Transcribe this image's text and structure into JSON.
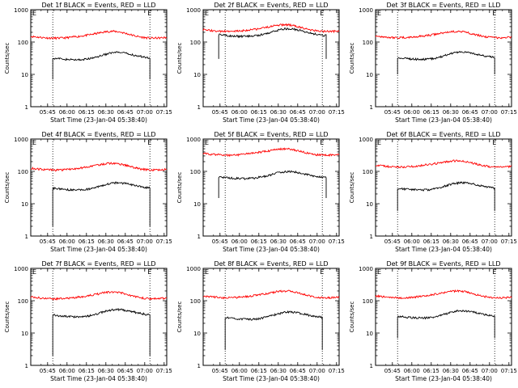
{
  "chart_data": [
    {
      "type": "line",
      "title": "Det 1f BLACK = Events, RED = LLD",
      "xlabel": "Start Time (23-Jan-04 05:38:40)",
      "ylabel": "Counts/sec",
      "yscale": "log",
      "ylim": [
        1,
        1000
      ],
      "xlim": [
        -7,
        98
      ],
      "x_tick_labels": [
        "05:45",
        "06:00",
        "06:15",
        "06:30",
        "06:45",
        "07:00",
        "07:15"
      ],
      "y_tick_labels": [
        "1",
        "10",
        "100",
        "1000"
      ],
      "markers": {
        "start": 10,
        "end": 85,
        "label": "E"
      },
      "series": [
        {
          "name": "RED = LLD",
          "color": "#ff0000",
          "start": -7,
          "end": 98,
          "base": 150,
          "amp": 0.3
        },
        {
          "name": "BLACK = Events",
          "color": "#000000",
          "start": 10,
          "end": 85,
          "base": 32,
          "amp": 0.35,
          "edge_low": 7
        }
      ]
    },
    {
      "type": "line",
      "title": "Det 2f BLACK = Events, RED = LLD",
      "xlabel": "Start Time (23-Jan-04 05:38:40)",
      "ylabel": "Counts/sec",
      "yscale": "log",
      "ylim": [
        1,
        1000
      ],
      "xlim": [
        -7,
        98
      ],
      "x_tick_labels": [
        "05:45",
        "06:00",
        "06:15",
        "06:30",
        "06:45",
        "07:00",
        "07:15"
      ],
      "y_tick_labels": [
        "1",
        "10",
        "100",
        "1000"
      ],
      "markers": {
        "start": 10,
        "end": 85,
        "label": "E"
      },
      "series": [
        {
          "name": "RED = LLD",
          "color": "#ff0000",
          "start": -7,
          "end": 98,
          "base": 240,
          "amp": 0.3
        },
        {
          "name": "BLACK = Events",
          "color": "#000000",
          "start": 5,
          "end": 88,
          "base": 170,
          "amp": 0.35,
          "edge_low": 30
        }
      ]
    },
    {
      "type": "line",
      "title": "Det 3f BLACK = Events, RED = LLD",
      "xlabel": "Start Time (23-Jan-04 05:38:40)",
      "ylabel": "Counts/sec",
      "yscale": "log",
      "ylim": [
        1,
        1000
      ],
      "xlim": [
        -7,
        98
      ],
      "x_tick_labels": [
        "05:45",
        "06:00",
        "06:15",
        "06:30",
        "06:45",
        "07:00",
        "07:15"
      ],
      "y_tick_labels": [
        "1",
        "10",
        "100",
        "1000"
      ],
      "markers": {
        "start": 10,
        "end": 85,
        "label": "E"
      },
      "series": [
        {
          "name": "RED = LLD",
          "color": "#ff0000",
          "start": -7,
          "end": 98,
          "base": 155,
          "amp": 0.25
        },
        {
          "name": "BLACK = Events",
          "color": "#000000",
          "start": 10,
          "end": 85,
          "base": 33,
          "amp": 0.35,
          "edge_low": 10
        }
      ]
    },
    {
      "type": "line",
      "title": "Det 4f BLACK = Events, RED = LLD",
      "xlabel": "Start Time (23-Jan-04 05:38:40)",
      "ylabel": "Counts/sec",
      "yscale": "log",
      "ylim": [
        1,
        1000
      ],
      "xlim": [
        -7,
        98
      ],
      "x_tick_labels": [
        "05:45",
        "06:00",
        "06:15",
        "06:30",
        "06:45",
        "07:00",
        "07:15"
      ],
      "y_tick_labels": [
        "1",
        "10",
        "100",
        "1000"
      ],
      "markers": {
        "start": 10,
        "end": 85,
        "label": "E"
      },
      "series": [
        {
          "name": "RED = LLD",
          "color": "#ff0000",
          "start": -7,
          "end": 98,
          "base": 125,
          "amp": 0.3
        },
        {
          "name": "BLACK = Events",
          "color": "#000000",
          "start": 10,
          "end": 85,
          "base": 30,
          "amp": 0.35,
          "edge_low": 2
        }
      ]
    },
    {
      "type": "line",
      "title": "Det 5f BLACK = Events, RED = LLD",
      "xlabel": "Start Time (23-Jan-04 05:38:40)",
      "ylabel": "Counts/sec",
      "yscale": "log",
      "ylim": [
        1,
        1000
      ],
      "xlim": [
        -7,
        98
      ],
      "x_tick_labels": [
        "05:45",
        "06:00",
        "06:15",
        "06:30",
        "06:45",
        "07:00",
        "07:15"
      ],
      "y_tick_labels": [
        "1",
        "10",
        "100",
        "1000"
      ],
      "markers": {
        "start": 10,
        "end": 85,
        "label": "E"
      },
      "series": [
        {
          "name": "RED = LLD",
          "color": "#ff0000",
          "start": -7,
          "end": 98,
          "base": 360,
          "amp": 0.25
        },
        {
          "name": "BLACK = Events",
          "color": "#000000",
          "start": 5,
          "end": 88,
          "base": 68,
          "amp": 0.3,
          "edge_low": 15
        }
      ]
    },
    {
      "type": "line",
      "title": "Det 6f BLACK = Events, RED = LLD",
      "xlabel": "Start Time (23-Jan-04 05:38:40)",
      "ylabel": "Counts/sec",
      "yscale": "log",
      "ylim": [
        1,
        1000
      ],
      "xlim": [
        -7,
        98
      ],
      "x_tick_labels": [
        "05:45",
        "06:00",
        "06:15",
        "06:30",
        "06:45",
        "07:00",
        "07:15"
      ],
      "y_tick_labels": [
        "1",
        "10",
        "100",
        "1000"
      ],
      "markers": {
        "start": 10,
        "end": 85,
        "label": "E"
      },
      "series": [
        {
          "name": "RED = LLD",
          "color": "#ff0000",
          "start": -7,
          "end": 98,
          "base": 155,
          "amp": 0.25
        },
        {
          "name": "BLACK = Events",
          "color": "#000000",
          "start": 10,
          "end": 85,
          "base": 30,
          "amp": 0.35,
          "edge_low": 6
        }
      ]
    },
    {
      "type": "line",
      "title": "Det 7f BLACK = Events, RED = LLD",
      "xlabel": "Start Time (23-Jan-04 05:38:40)",
      "ylabel": "Counts/sec",
      "yscale": "log",
      "ylim": [
        1,
        1000
      ],
      "xlim": [
        -7,
        98
      ],
      "x_tick_labels": [
        "05:45",
        "06:00",
        "06:15",
        "06:30",
        "06:45",
        "07:00",
        "07:15"
      ],
      "y_tick_labels": [
        "1",
        "10",
        "100",
        "1000"
      ],
      "markers": {
        "start": 10,
        "end": 85,
        "label": "E"
      },
      "series": [
        {
          "name": "RED = LLD",
          "color": "#ff0000",
          "start": -7,
          "end": 98,
          "base": 130,
          "amp": 0.3
        },
        {
          "name": "BLACK = Events",
          "color": "#000000",
          "start": 10,
          "end": 85,
          "base": 36,
          "amp": 0.35,
          "edge_low": 2
        }
      ]
    },
    {
      "type": "line",
      "title": "Det 8f BLACK = Events, RED = LLD",
      "xlabel": "Start Time (23-Jan-04 05:38:40)",
      "ylabel": "Counts/sec",
      "yscale": "log",
      "ylim": [
        1,
        1000
      ],
      "xlim": [
        -7,
        98
      ],
      "x_tick_labels": [
        "05:45",
        "06:00",
        "06:15",
        "06:30",
        "06:45",
        "07:00",
        "07:15"
      ],
      "y_tick_labels": [
        "1",
        "10",
        "100",
        "1000"
      ],
      "markers": {
        "start": 10,
        "end": 85,
        "label": "E"
      },
      "series": [
        {
          "name": "RED = LLD",
          "color": "#ff0000",
          "start": -7,
          "end": 98,
          "base": 140,
          "amp": 0.3
        },
        {
          "name": "BLACK = Events",
          "color": "#000000",
          "start": 10,
          "end": 85,
          "base": 30,
          "amp": 0.35,
          "edge_low": 3
        }
      ]
    },
    {
      "type": "line",
      "title": "Det 9f BLACK = Events, RED = LLD",
      "xlabel": "Start Time (23-Jan-04 05:38:40)",
      "ylabel": "Counts/sec",
      "yscale": "log",
      "ylim": [
        1,
        1000
      ],
      "xlim": [
        -7,
        98
      ],
      "x_tick_labels": [
        "05:45",
        "06:00",
        "06:15",
        "06:30",
        "06:45",
        "07:00",
        "07:15"
      ],
      "y_tick_labels": [
        "1",
        "10",
        "100",
        "1000"
      ],
      "markers": {
        "start": 10,
        "end": 85,
        "label": "E"
      },
      "series": [
        {
          "name": "RED = LLD",
          "color": "#ff0000",
          "start": -7,
          "end": 98,
          "base": 140,
          "amp": 0.3
        },
        {
          "name": "BLACK = Events",
          "color": "#000000",
          "start": 10,
          "end": 85,
          "base": 33,
          "amp": 0.35,
          "edge_low": 7
        }
      ]
    }
  ]
}
